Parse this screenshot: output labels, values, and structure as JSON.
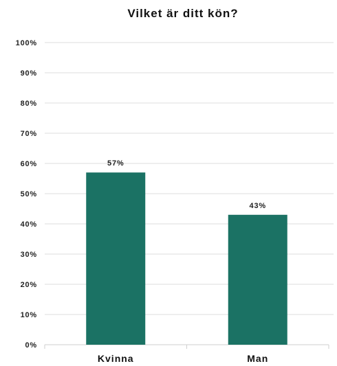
{
  "chart_data": {
    "type": "bar",
    "title": "Vilket är ditt kön?",
    "categories": [
      "Kvinna",
      "Man"
    ],
    "values": [
      57,
      43
    ],
    "data_labels": [
      "57%",
      "43%"
    ],
    "ylim": [
      0,
      100
    ],
    "yticks": [
      "0%",
      "10%",
      "20%",
      "30%",
      "40%",
      "50%",
      "60%",
      "70%",
      "80%",
      "90%",
      "100%"
    ],
    "xlabel": "",
    "ylabel": "",
    "grid": true,
    "legend": "none",
    "bar_color": "#1b7264"
  }
}
